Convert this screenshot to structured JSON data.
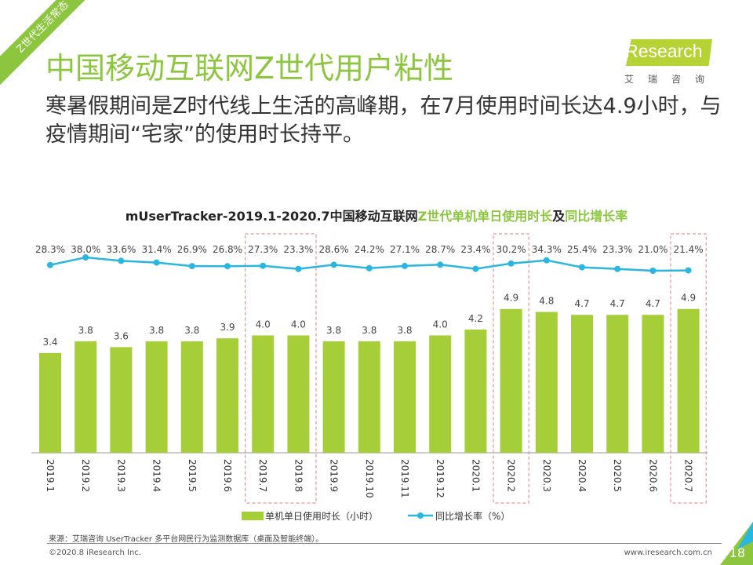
{
  "badge": "Z世代生活常态",
  "title": "中国移动互联网Z世代用户粘性",
  "subtitle": "寒暑假期间是Z时代线上生活的高峰期，在7月使用时间长达4.9小时，与疫情期间“宅家”的使用时长持平。",
  "logo": {
    "brand": "iResearch",
    "cn": "艾瑞咨询"
  },
  "chart_title": {
    "part1": "mUserTracker-2019.1-2020.7中国移动互联网",
    "part2": "Z世代单机单日使用时长",
    "part3": "及",
    "part4": "同比增长率"
  },
  "colors": {
    "accent": "#8cc63f",
    "bar": "#a6ce39",
    "line": "#29b6e0",
    "highlight_box": "#e07a7a"
  },
  "chart_data": {
    "type": "bar+line",
    "categories": [
      "2019.1",
      "2019.2",
      "2019.3",
      "2019.4",
      "2019.5",
      "2019.6",
      "2019.7",
      "2019.8",
      "2019.9",
      "2019.10",
      "2019.11",
      "2019.12",
      "2020.1",
      "2020.2",
      "2020.3",
      "2020.4",
      "2020.5",
      "2020.6",
      "2020.7"
    ],
    "series": [
      {
        "name": "单机单日使用时长（小时）",
        "type": "bar",
        "values": [
          3.4,
          3.8,
          3.6,
          3.8,
          3.8,
          3.9,
          4.0,
          4.0,
          3.8,
          3.8,
          3.8,
          4.0,
          4.2,
          4.9,
          4.8,
          4.7,
          4.7,
          4.7,
          4.9
        ]
      },
      {
        "name": "同比增长率（%）",
        "type": "line",
        "values": [
          28.3,
          38.0,
          33.6,
          31.4,
          26.9,
          26.8,
          27.3,
          23.3,
          28.6,
          24.2,
          27.1,
          28.7,
          23.4,
          30.2,
          34.3,
          25.4,
          23.3,
          21.0,
          21.4
        ]
      }
    ],
    "highlighted": [
      [
        "2019.7",
        "2019.8"
      ],
      [
        "2020.2"
      ],
      [
        "2020.7"
      ]
    ],
    "grid": false
  },
  "footer": {
    "source": "来源：艾瑞咨询 UserTracker 多平台网民行为监测数据库（桌面及智能终端）。",
    "copyright": "©2020.8 iResearch Inc.",
    "url": "www.iresearch.com.cn",
    "page": "18"
  }
}
